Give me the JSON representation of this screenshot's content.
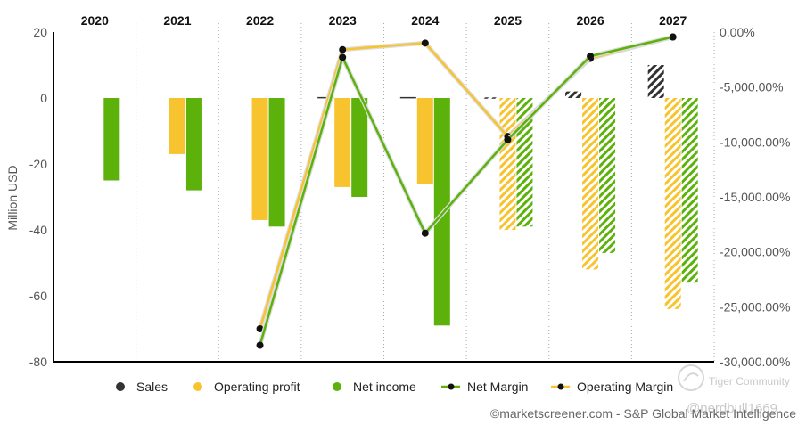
{
  "chart_data": {
    "type": "bar",
    "categories": [
      "2020",
      "2021",
      "2022",
      "2023",
      "2024",
      "2025",
      "2026",
      "2027"
    ],
    "estimate_from": "2025",
    "ylabel": "Million USD",
    "ylim": [
      -80,
      20
    ],
    "y_ticks": [
      "20",
      "0",
      "-20",
      "-40",
      "-60",
      "-80"
    ],
    "y2lim": [
      -30000,
      0
    ],
    "y2_ticks": [
      "0.00%",
      "-5,000.00%",
      "-10,000.00%",
      "-15,000.00%",
      "-20,000.00%",
      "-25,000.00%",
      "-30,000.00%"
    ],
    "series": [
      {
        "name": "Sales",
        "kind": "bar",
        "color": "#333333",
        "values": [
          0,
          0,
          0,
          0.3,
          0.3,
          0.2,
          2,
          10
        ]
      },
      {
        "name": "Operating profit",
        "kind": "bar",
        "color": "#f7c32e",
        "values": [
          null,
          -17,
          -37,
          -27,
          -26,
          -40,
          -52,
          -64
        ]
      },
      {
        "name": "Net income",
        "kind": "bar",
        "color": "#5cb20b",
        "values": [
          -25,
          -28,
          -39,
          -30,
          -69,
          -39,
          -47,
          -56
        ]
      },
      {
        "name": "Net Margin",
        "kind": "line",
        "axis": "right",
        "color": "#5cb20b",
        "values": [
          null,
          null,
          -28500,
          -2300,
          -18300,
          -9800,
          -2200,
          -450
        ]
      },
      {
        "name": "Operating Margin",
        "kind": "line",
        "axis": "right",
        "color": "#f7c32e",
        "values": [
          null,
          null,
          -27000,
          -1600,
          -1000,
          -9500,
          -2400,
          -450
        ]
      }
    ],
    "legend_position": "bottom"
  },
  "credit": "©marketscreener.com - S&P Global Market Intelligence",
  "watermark": {
    "brand": "Tiger Community",
    "user": "@nerdbull1669"
  }
}
